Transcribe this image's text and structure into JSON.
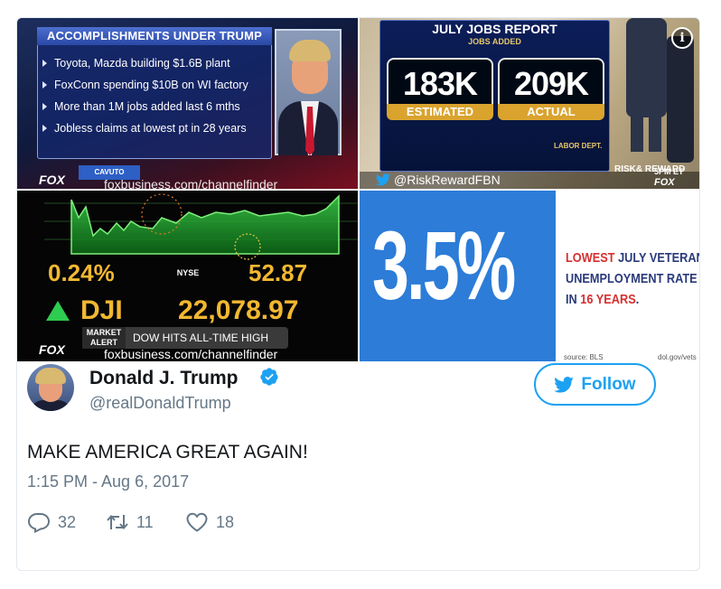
{
  "media": {
    "panel1": {
      "title": "ACCOMPLISHMENTS UNDER TRUMP",
      "items": [
        "Toyota, Mazda building $1.6B plant",
        "FoxConn spending $10B on WI factory",
        "More than 1M jobs added last 6 mths",
        "Jobless claims at lowest pt in 28 years"
      ],
      "network": "FOX",
      "show": "CAVUTO",
      "url": "foxbusiness.com/channelfinder"
    },
    "panel2": {
      "title": "JULY JOBS REPORT",
      "subtitle": "JOBS ADDED",
      "estimated_value": "183K",
      "estimated_label": "ESTIMATED",
      "actual_value": "209K",
      "actual_label": "ACTUAL",
      "source": "LABOR DEPT.",
      "handle": "@RiskRewardFBN",
      "show_logo": "RISK& REWARD",
      "time": "5PM ET",
      "network": "FOX"
    },
    "panel3": {
      "percent_change": "0.24%",
      "exchange": "NYSE",
      "point_change": "52.87",
      "index": "DJI",
      "index_value": "22,078.97",
      "alert_tag": "MARKET ALERT",
      "alert_text": "DOW HITS ALL-TIME HIGH",
      "network": "FOX",
      "url": "foxbusiness.com/channelfinder",
      "chart_line_color": "#3bd24a"
    },
    "panel4": {
      "rate": "3.5%",
      "line1_red": "LOWEST",
      "line1_rest": " JULY VETERAN",
      "line2": "UNEMPLOYMENT RATE",
      "line3_prefix": "IN ",
      "line3_red": "16 YEARS",
      "line3_suffix": ".",
      "source_left": "source: BLS",
      "source_right": "dol.gov/vets"
    }
  },
  "tweet": {
    "display_name": "Donald J. Trump",
    "handle": "@realDonaldTrump",
    "follow_label": "Follow",
    "text": "MAKE AMERICA GREAT AGAIN!",
    "timestamp": "1:15 PM - Aug 6, 2017",
    "replies": "32",
    "retweets": "11",
    "likes": "18"
  },
  "colors": {
    "twitter_blue": "#1da1f2",
    "secondary_text": "#657786"
  },
  "icons": [
    "info-icon",
    "verified-icon",
    "twitter-bird-icon",
    "reply-icon",
    "retweet-icon",
    "like-icon"
  ]
}
